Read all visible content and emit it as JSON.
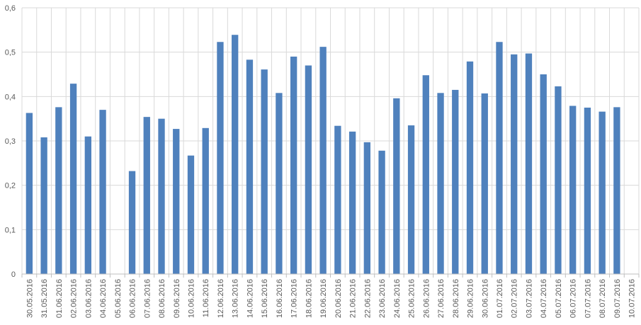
{
  "chart_data": {
    "type": "bar",
    "title": "",
    "xlabel": "",
    "ylabel": "",
    "ylim": [
      0,
      0.6
    ],
    "yticks": [
      "0",
      "0,1",
      "0,2",
      "0,3",
      "0,4",
      "0,5",
      "0,6"
    ],
    "grid": true,
    "legend": "none",
    "bar_color": "#4F81BD",
    "grid_color": "#D9D9D9",
    "axis_color": "#BFBFBF",
    "categories": [
      "30.05.2016",
      "31.05.2016",
      "01.06.2016",
      "02.06.2016",
      "03.06.2016",
      "04.06.2016",
      "05.06.2016",
      "06.06.2016",
      "07.06.2016",
      "08.06.2016",
      "09.06.2016",
      "10.06.2016",
      "11.06.2016",
      "12.06.2016",
      "13.06.2016",
      "14.06.2016",
      "15.06.2016",
      "16.06.2016",
      "17.06.2016",
      "18.06.2016",
      "19.06.2016",
      "20.06.2016",
      "21.06.2016",
      "22.06.2016",
      "23.06.2016",
      "24.06.2016",
      "25.06.2016",
      "26.06.2016",
      "27.06.2016",
      "28.06.2016",
      "29.06.2016",
      "30.06.2016",
      "01.07.2016",
      "02.07.2016",
      "03.07.2016",
      "04.07.2016",
      "05.07.2016",
      "06.07.2016",
      "07.07.2016",
      "08.07.2016",
      "09.07.2016",
      "10.07.2016"
    ],
    "values": [
      0.363,
      0.308,
      0.376,
      0.429,
      0.31,
      0.37,
      null,
      0.232,
      0.354,
      0.35,
      0.327,
      0.267,
      0.329,
      0.523,
      0.539,
      0.483,
      0.461,
      0.408,
      0.49,
      0.47,
      0.512,
      0.334,
      0.321,
      0.297,
      0.278,
      0.396,
      0.335,
      0.448,
      0.408,
      0.415,
      0.479,
      0.407,
      0.523,
      0.495,
      0.497,
      0.45,
      0.423,
      0.379,
      0.375,
      0.366,
      0.376,
      null
    ]
  }
}
